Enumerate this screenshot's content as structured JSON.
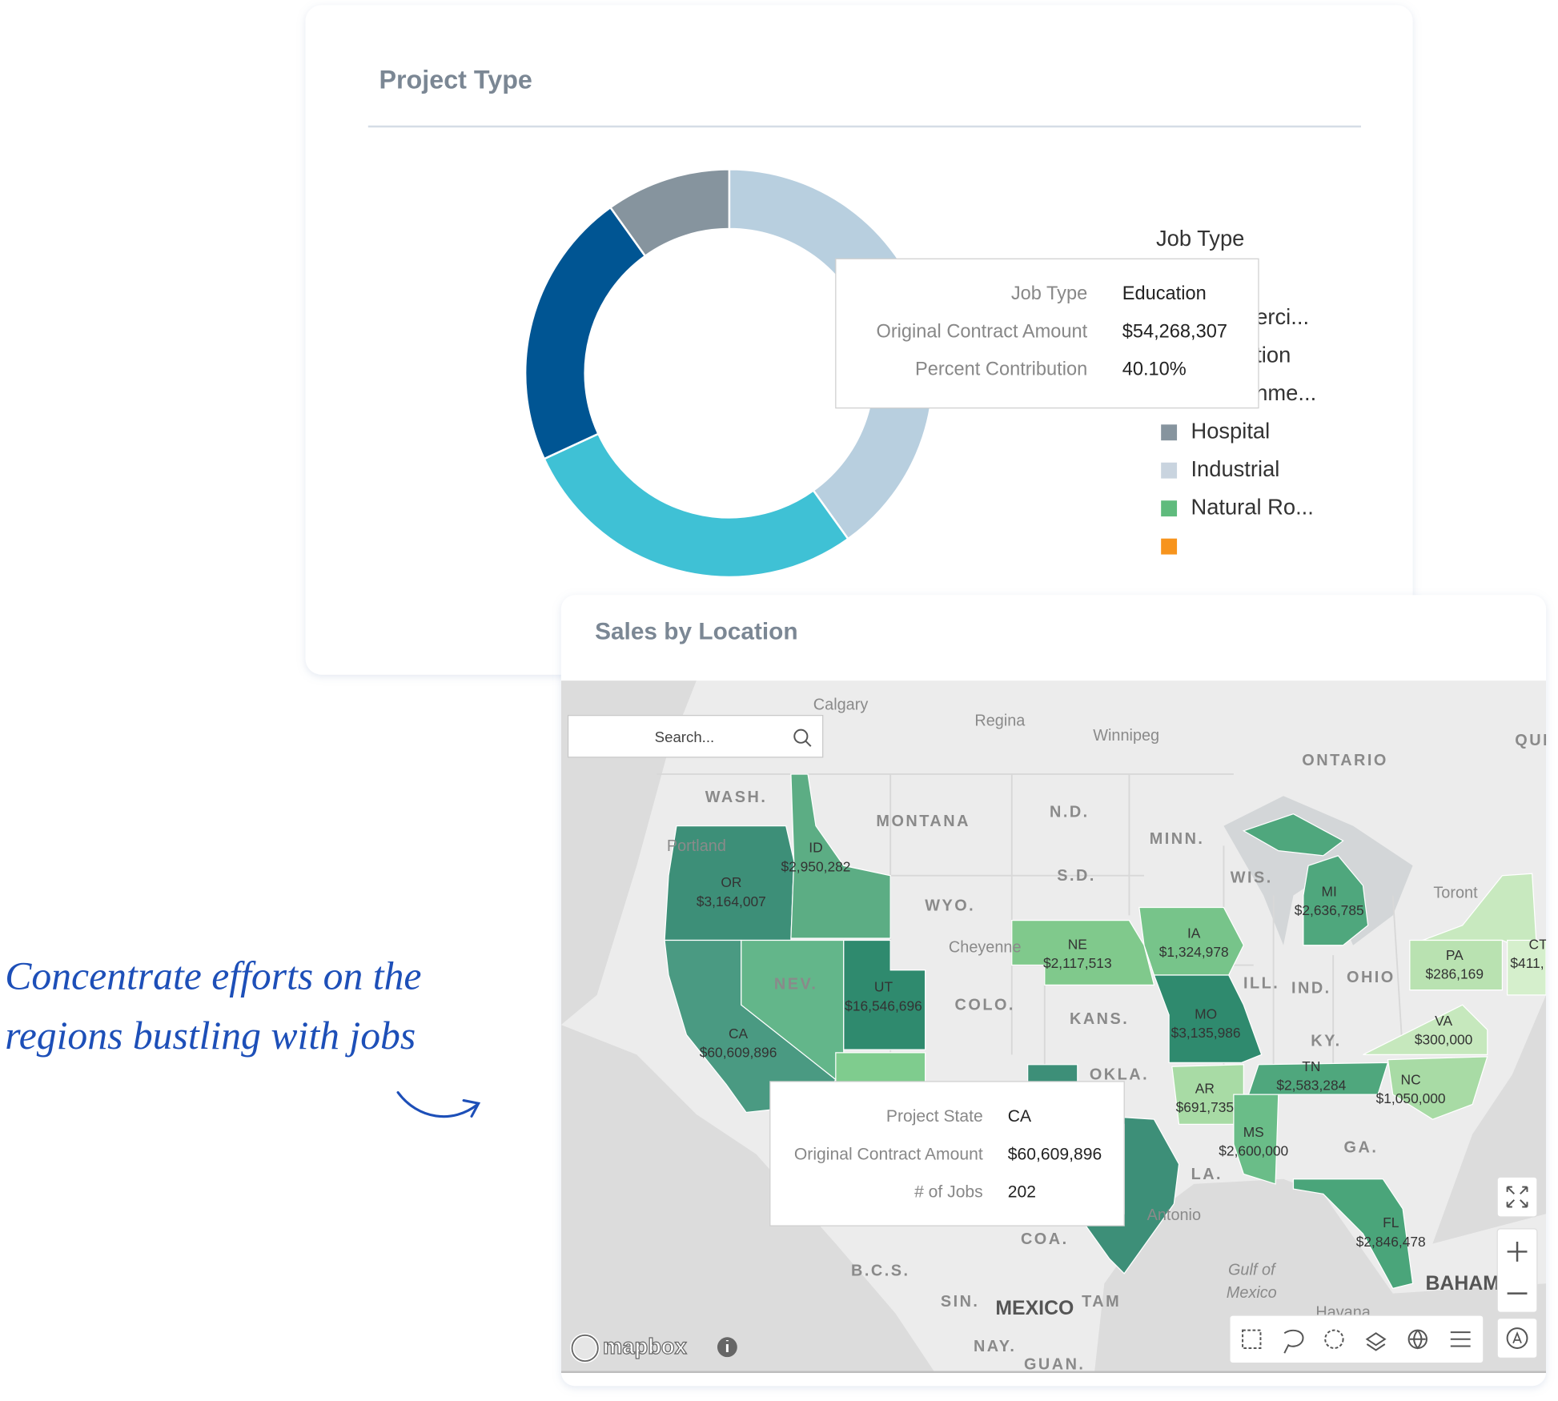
{
  "chart_data": {
    "type": "donut",
    "title": "Project Type",
    "legend_title": "Job Type",
    "categories": [
      "Education",
      null,
      null,
      null
    ],
    "values": [
      40.1,
      28,
      22,
      9.9
    ],
    "value_labels": [
      "40.10%",
      null,
      null,
      null
    ],
    "colors": [
      "#b8cfdf",
      "#3fc1d5",
      "#005593",
      "#86949e"
    ],
    "legend": [
      {
        "label": "erci..."
      },
      {
        "label": "tion"
      },
      {
        "label": "nme..."
      },
      {
        "label": "Hospital",
        "color": "#86949e"
      },
      {
        "label": "Industrial",
        "color": "#c9d4df"
      },
      {
        "label": "Natural Ro...",
        "color": "#5fbb7d"
      },
      {
        "label": null,
        "color": "#f7941d"
      }
    ],
    "tooltip": {
      "labels": [
        "Job Type",
        "Original Contract Amount",
        "Percent Contribution"
      ],
      "amount": "$54,268,307"
    }
  },
  "annotation": {
    "lines": [
      "Concentrate efforts on the",
      "regions bustling with jobs"
    ]
  },
  "map_card": {
    "title": "Sales by Location",
    "search_placeholder": "Search...",
    "brand": "mapbox",
    "places": [
      "Calgary",
      "Regina",
      "Winnipeg",
      "ONTARIO",
      "QUI",
      "WASH.",
      "MONTANA",
      "N.D.",
      "MINN.",
      "Portland",
      "WYO.",
      "S.D.",
      "WIS.",
      "Toront",
      "Cheyenne",
      "NEV.",
      "COLO.",
      "KANS.",
      "ILL.",
      "IND.",
      "OHIO",
      "KY.",
      "OKLA.",
      "GA.",
      "LA.",
      "COA.",
      "Antonio",
      "B.C.S.",
      "SIN.",
      "MEXICO",
      "TAM",
      "Gulf of",
      "Mexico",
      "Havana",
      "BAHAM",
      "NAY.",
      "GUAN."
    ],
    "states": [
      {
        "code": "OR",
        "amount": "$3,164,007",
        "color": "#3d8f78"
      },
      {
        "code": "ID",
        "amount": "$2,950,282",
        "color": "#5cad84"
      },
      {
        "code": "CA",
        "amount": "$60,609,896",
        "color": "#4a9a82"
      },
      {
        "code": null,
        "amount": null,
        "color": "#63b68a"
      },
      {
        "code": "UT",
        "amount": "$16,546,696",
        "color": "#2f8a6e"
      },
      {
        "code": null,
        "amount": null,
        "color": "#7fcc8e"
      },
      {
        "code": "NE",
        "amount": "$2,117,513",
        "color": "#80c98c"
      },
      {
        "code": "IA",
        "amount": "$1,324,978",
        "color": "#77c48a"
      },
      {
        "code": "MO",
        "amount": "$3,135,986",
        "color": "#2f8a6e"
      },
      {
        "code": "MI",
        "amount": "$2,636,785",
        "color": "#4fa77d"
      },
      {
        "code": null,
        "amount": null,
        "color": "#4fa77d"
      },
      {
        "code": null,
        "amount": null,
        "color": "#c8e9bf"
      },
      {
        "code": "PA",
        "amount": "$286,169",
        "color": "#b9e2b1"
      },
      {
        "code": "CT",
        "amount": "$411,",
        "color": "#d5efcc"
      },
      {
        "code": "VA",
        "amount": "$300,000",
        "color": "#c6e8bd"
      },
      {
        "code": "NC",
        "amount": "$1,050,000",
        "color": "#a8dba5"
      },
      {
        "code": "TN",
        "amount": "$2,583,284",
        "color": "#4fa77d"
      },
      {
        "code": "AR",
        "amount": "$691,735",
        "color": "#a8dba5"
      },
      {
        "code": "MS",
        "amount": "$2,600,000",
        "color": "#6abd88"
      },
      {
        "code": "FL",
        "amount": "$2,846,478",
        "color": "#4aa57a"
      },
      {
        "code": null,
        "amount": null,
        "color": "#3d8f78"
      }
    ],
    "tooltip": {
      "labels": [
        "Project State",
        "Original Contract Amount",
        "# of Jobs"
      ],
      "values": [
        "CA",
        "$60,609,896",
        "202"
      ]
    }
  }
}
